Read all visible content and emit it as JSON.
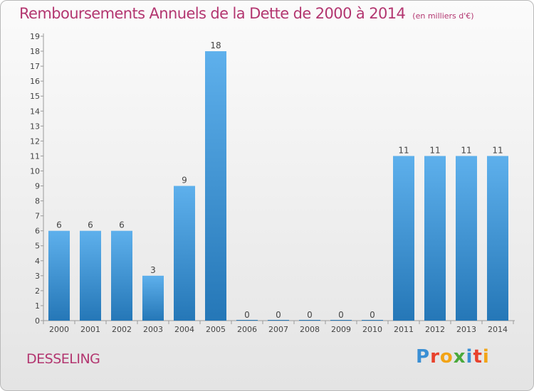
{
  "title": "Remboursements Annuels de la Dette de 2000 à 2014",
  "unit": "(en milliers d'€)",
  "commune": "DESSELING",
  "logo": {
    "text": "Proxiti",
    "letters": [
      {
        "char": "P",
        "color": "#3a8fd4"
      },
      {
        "char": "r",
        "color": "#e8412c"
      },
      {
        "char": "o",
        "color": "#f2a416"
      },
      {
        "char": "x",
        "color": "#4aa93c"
      },
      {
        "char": "i",
        "color": "#3a8fd4"
      },
      {
        "char": "t",
        "color": "#e8412c"
      },
      {
        "char": "i",
        "color": "#f2a416"
      }
    ]
  },
  "colors": {
    "bar_light": "#5eb0ec",
    "bar_dark": "#2577b7",
    "accent": "#b33670"
  },
  "chart_data": {
    "type": "bar",
    "categories": [
      "2000",
      "2001",
      "2002",
      "2003",
      "2004",
      "2005",
      "2006",
      "2007",
      "2008",
      "2009",
      "2010",
      "2011",
      "2012",
      "2013",
      "2014"
    ],
    "values": [
      6,
      6,
      6,
      3,
      9,
      18,
      0,
      0,
      0,
      0,
      0,
      11,
      11,
      11,
      11
    ],
    "ylim": [
      0,
      19
    ],
    "yticks": [
      0,
      1,
      2,
      3,
      4,
      5,
      6,
      7,
      8,
      9,
      10,
      11,
      12,
      13,
      14,
      15,
      16,
      17,
      18,
      19
    ],
    "grid": false,
    "data_labels": true
  }
}
